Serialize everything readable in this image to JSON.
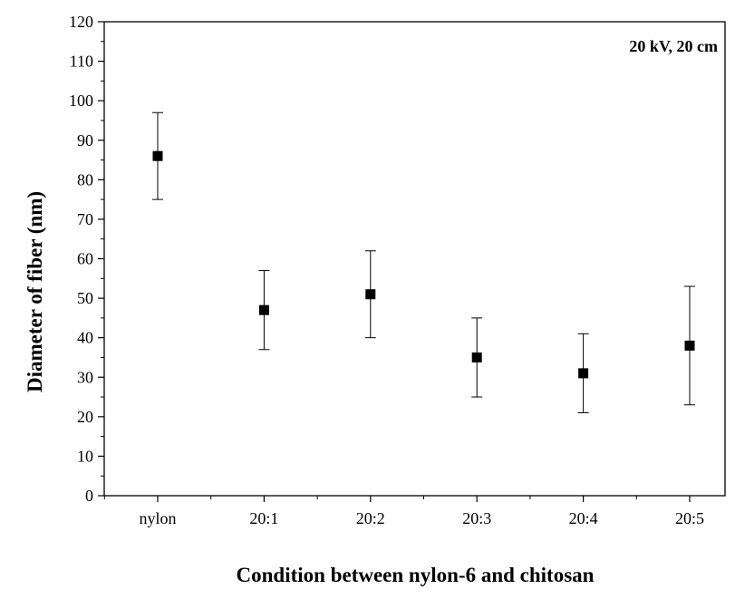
{
  "chart_data": {
    "type": "scatter",
    "categories": [
      "nylon",
      "20:1",
      "20:2",
      "20:3",
      "20:4",
      "20:5"
    ],
    "series": [
      {
        "values": [
          86,
          47,
          51,
          35,
          31,
          38
        ],
        "error_low": [
          75,
          37,
          40,
          25,
          21,
          23
        ],
        "error_high": [
          97,
          57,
          62,
          45,
          41,
          53
        ]
      }
    ],
    "xlabel": "Condition between nylon-6 and chitosan",
    "ylabel": "Diameter of fiber (nm)",
    "ylim": [
      0,
      120
    ],
    "yticks": [
      "0",
      "10",
      "20",
      "30",
      "40",
      "50",
      "60",
      "70",
      "80",
      "90",
      "100",
      "110",
      "120"
    ],
    "annotation": "20 kV, 20 cm",
    "grid": false,
    "marker": "filled-square",
    "color": "#000000"
  }
}
